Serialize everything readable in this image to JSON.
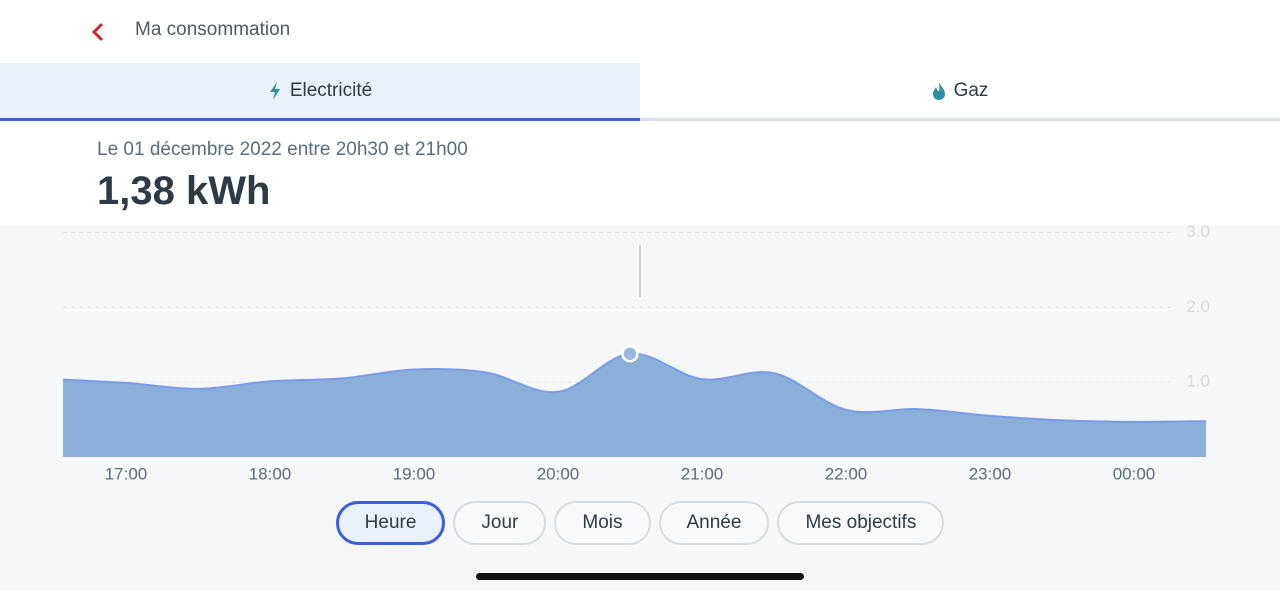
{
  "header": {
    "title": "Ma consommation"
  },
  "tabs": [
    "Electricité",
    "Gaz"
  ],
  "summary": {
    "period": "Le 01 décembre 2022 entre 20h30 et 21h00",
    "value": "1,38 kWh"
  },
  "chart_data": {
    "type": "area",
    "categories": [
      null,
      "17:00",
      null,
      "18:00",
      null,
      "19:00",
      null,
      "20:00",
      null,
      "21:00",
      null,
      "22:00",
      null,
      "23:00",
      null,
      "00:00",
      null
    ],
    "values": [
      1.04,
      0.99,
      0.91,
      1.01,
      1.05,
      1.17,
      1.13,
      0.87,
      1.38,
      1.04,
      1.12,
      0.63,
      0.64,
      0.55,
      0.49,
      0.47,
      0.48
    ],
    "color": "#8aafd9",
    "line_color": "#7b9be8",
    "ylim": [
      0,
      3.1
    ],
    "yticks": [
      {
        "value": 1,
        "label": "1.0"
      },
      {
        "value": 2,
        "label": "2.0"
      },
      {
        "value": 3,
        "label": "3.0"
      }
    ],
    "grid": true,
    "selected": 8
  },
  "periods": [
    "Heure",
    "Jour",
    "Mois",
    "Année",
    "Mes objectifs"
  ]
}
